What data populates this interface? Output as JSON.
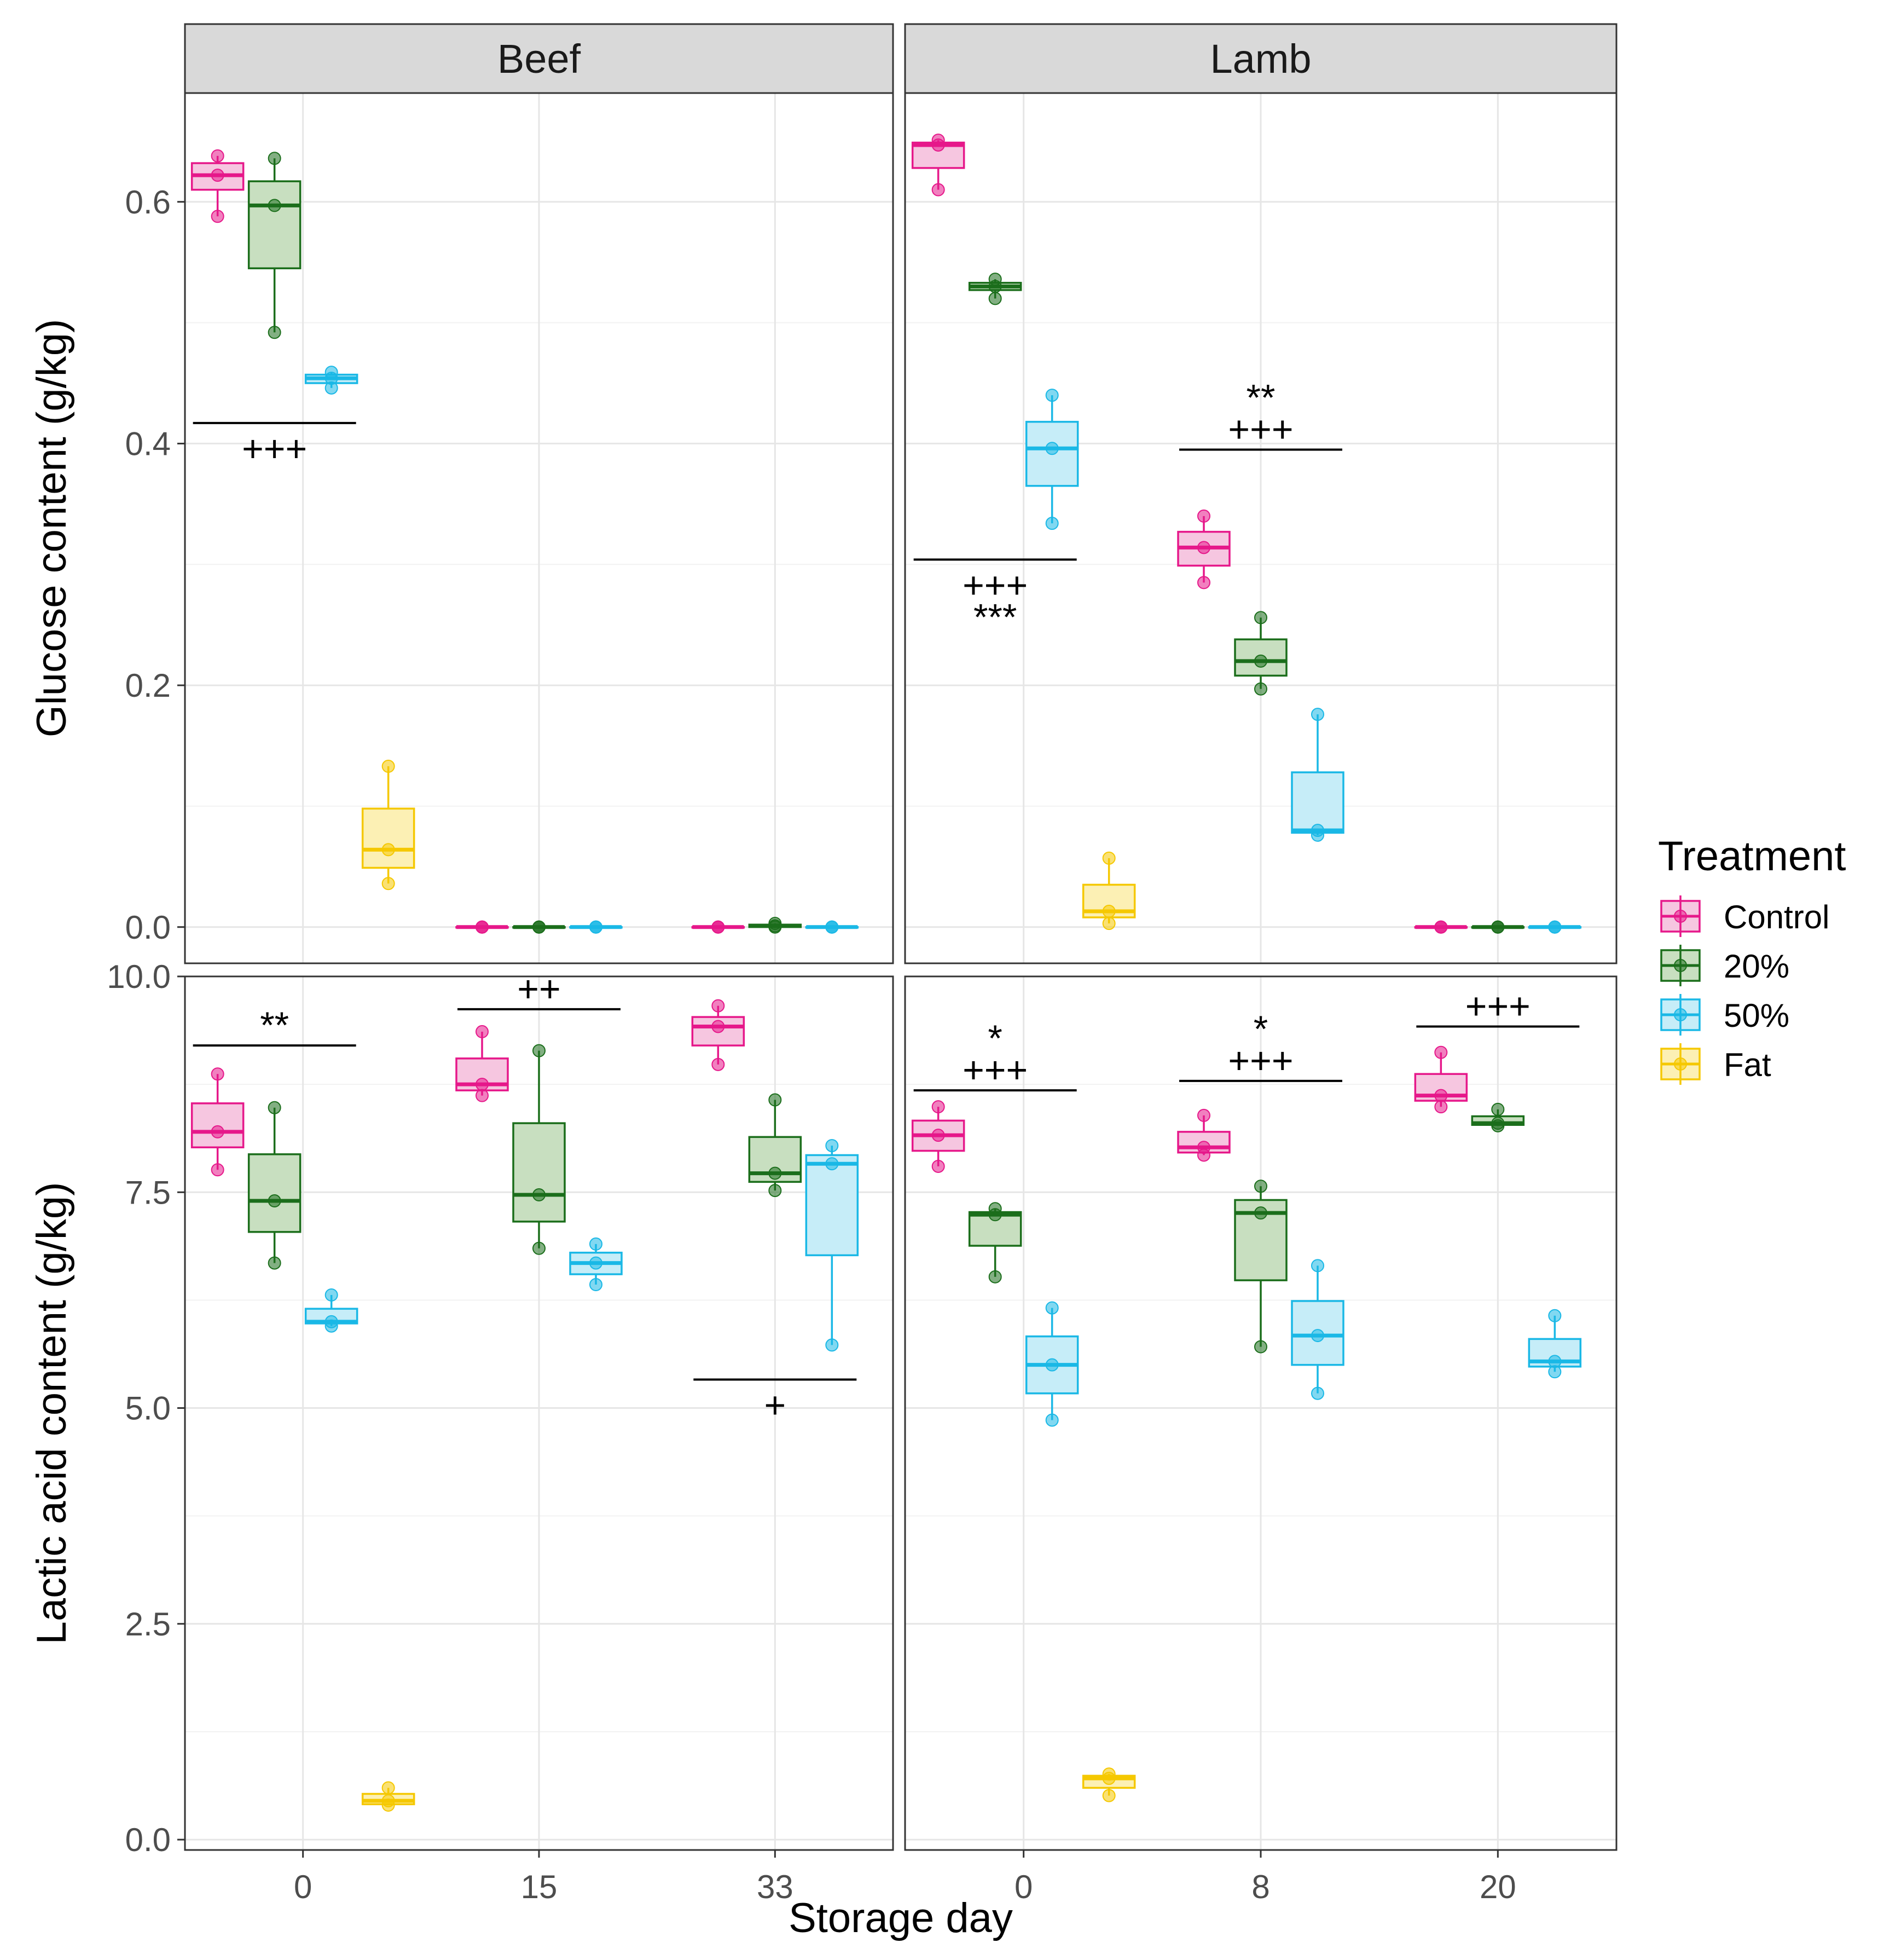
{
  "chart_data": {
    "type": "boxplot",
    "facets": [
      "Beef",
      "Lamb"
    ],
    "legend": {
      "title": "Treatment",
      "entries": [
        {
          "name": "Control",
          "color": "#e6188a",
          "fill": "#f6c6e0"
        },
        {
          "name": "20%",
          "color": "#1b6e1b",
          "fill": "#c8dfc0"
        },
        {
          "name": "50%",
          "color": "#1ab8e6",
          "fill": "#c6edf8"
        },
        {
          "name": "Fat",
          "color": "#f5c800",
          "fill": "#fcf0b4"
        }
      ]
    },
    "xlabel": "Storage day",
    "x_ticks": {
      "Beef": [
        "0",
        "15",
        "33"
      ],
      "Lamb": [
        "0",
        "8",
        "20"
      ]
    },
    "rows": [
      {
        "ylabel": "Glucose content (g/kg)",
        "ylim": [
          -0.03,
          0.69
        ],
        "y_ticks": [
          0.0,
          0.2,
          0.4,
          0.6
        ],
        "y_tick_labels": [
          "0.0",
          "0.2",
          "0.4",
          "0.6"
        ],
        "panels": [
          {
            "facet": "Beef",
            "boxes": [
              {
                "group": 0,
                "treatment": "Control",
                "q1": 0.61,
                "median": 0.622,
                "q3": 0.632,
                "min": 0.588,
                "max": 0.638,
                "points": [
                  0.638,
                  0.622,
                  0.588
                ]
              },
              {
                "group": 0,
                "treatment": "20%",
                "q1": 0.545,
                "median": 0.597,
                "q3": 0.617,
                "min": 0.492,
                "max": 0.636,
                "points": [
                  0.636,
                  0.597,
                  0.492
                ]
              },
              {
                "group": 0,
                "treatment": "50%",
                "q1": 0.45,
                "median": 0.454,
                "q3": 0.457,
                "min": 0.446,
                "max": 0.459,
                "points": [
                  0.459,
                  0.454,
                  0.446
                ]
              },
              {
                "group": 0,
                "treatment": "Fat",
                "q1": 0.049,
                "median": 0.064,
                "q3": 0.098,
                "min": 0.036,
                "max": 0.133,
                "points": [
                  0.133,
                  0.064,
                  0.036
                ]
              },
              {
                "group": 1,
                "treatment": "Control",
                "q1": 0,
                "median": 0,
                "q3": 0,
                "min": 0,
                "max": 0,
                "points": [
                  0,
                  0,
                  0
                ]
              },
              {
                "group": 1,
                "treatment": "20%",
                "q1": 0,
                "median": 0,
                "q3": 0,
                "min": 0,
                "max": 0,
                "points": [
                  0,
                  0,
                  0
                ]
              },
              {
                "group": 1,
                "treatment": "50%",
                "q1": 0,
                "median": 0,
                "q3": 0,
                "min": 0,
                "max": 0,
                "points": [
                  0,
                  0,
                  0
                ]
              },
              {
                "group": 2,
                "treatment": "Control",
                "q1": 0,
                "median": 0,
                "q3": 0,
                "min": 0,
                "max": 0,
                "points": [
                  0,
                  0,
                  0
                ]
              },
              {
                "group": 2,
                "treatment": "20%",
                "q1": 0,
                "median": 0.001,
                "q3": 0.002,
                "min": 0,
                "max": 0.003,
                "points": [
                  0.003,
                  0.001,
                  0
                ]
              },
              {
                "group": 2,
                "treatment": "50%",
                "q1": 0,
                "median": 0,
                "q3": 0,
                "min": 0,
                "max": 0,
                "points": [
                  0,
                  0,
                  0
                ]
              }
            ],
            "annotations": [
              {
                "group": 0,
                "from": "Control",
                "to": "50%",
                "y": 0.417,
                "label": "+++",
                "position": "below"
              }
            ]
          },
          {
            "facet": "Lamb",
            "boxes": [
              {
                "group": 0,
                "treatment": "Control",
                "q1": 0.628,
                "median": 0.647,
                "q3": 0.649,
                "min": 0.61,
                "max": 0.651,
                "points": [
                  0.651,
                  0.647,
                  0.61
                ]
              },
              {
                "group": 0,
                "treatment": "20%",
                "q1": 0.527,
                "median": 0.53,
                "q3": 0.533,
                "min": 0.52,
                "max": 0.536,
                "points": [
                  0.536,
                  0.53,
                  0.52
                ]
              },
              {
                "group": 0,
                "treatment": "50%",
                "q1": 0.365,
                "median": 0.396,
                "q3": 0.418,
                "min": 0.334,
                "max": 0.44,
                "points": [
                  0.44,
                  0.396,
                  0.334
                ]
              },
              {
                "group": 0,
                "treatment": "Fat",
                "q1": 0.008,
                "median": 0.013,
                "q3": 0.035,
                "min": 0.003,
                "max": 0.057,
                "points": [
                  0.057,
                  0.013,
                  0.003
                ]
              },
              {
                "group": 1,
                "treatment": "Control",
                "q1": 0.299,
                "median": 0.314,
                "q3": 0.327,
                "min": 0.285,
                "max": 0.34,
                "points": [
                  0.34,
                  0.314,
                  0.285
                ]
              },
              {
                "group": 1,
                "treatment": "20%",
                "q1": 0.208,
                "median": 0.22,
                "q3": 0.238,
                "min": 0.197,
                "max": 0.256,
                "points": [
                  0.256,
                  0.22,
                  0.197
                ]
              },
              {
                "group": 1,
                "treatment": "50%",
                "q1": 0.078,
                "median": 0.08,
                "q3": 0.128,
                "min": 0.076,
                "max": 0.176,
                "points": [
                  0.176,
                  0.08,
                  0.076
                ]
              },
              {
                "group": 2,
                "treatment": "Control",
                "q1": 0,
                "median": 0,
                "q3": 0,
                "min": 0,
                "max": 0,
                "points": [
                  0,
                  0,
                  0
                ]
              },
              {
                "group": 2,
                "treatment": "20%",
                "q1": 0,
                "median": 0,
                "q3": 0,
                "min": 0,
                "max": 0,
                "points": [
                  0,
                  0,
                  0
                ]
              },
              {
                "group": 2,
                "treatment": "50%",
                "q1": 0,
                "median": 0,
                "q3": 0,
                "min": 0,
                "max": 0,
                "points": [
                  0,
                  0,
                  0
                ]
              }
            ],
            "annotations": [
              {
                "group": 0,
                "from": "Control",
                "to": "50%",
                "y": 0.304,
                "label": "+++",
                "label2": "***",
                "position": "below"
              },
              {
                "group": 1,
                "from": "Control",
                "to": "50%",
                "y": 0.395,
                "label": "+++",
                "label2": "**",
                "position": "above"
              }
            ]
          }
        ]
      },
      {
        "ylabel": "Lactic acid content (g/kg)",
        "ylim": [
          -0.12,
          10.0
        ],
        "y_ticks": [
          0.0,
          2.5,
          5.0,
          7.5,
          10.0
        ],
        "y_tick_labels": [
          "0.0",
          "2.5",
          "5.0",
          "7.5",
          "10.0"
        ],
        "panels": [
          {
            "facet": "Beef",
            "boxes": [
              {
                "group": 0,
                "treatment": "Control",
                "q1": 8.02,
                "median": 8.2,
                "q3": 8.53,
                "min": 7.76,
                "max": 8.87,
                "points": [
                  8.87,
                  8.2,
                  7.76
                ]
              },
              {
                "group": 0,
                "treatment": "20%",
                "q1": 7.04,
                "median": 7.4,
                "q3": 7.94,
                "min": 6.68,
                "max": 8.48,
                "points": [
                  8.48,
                  7.4,
                  6.68
                ]
              },
              {
                "group": 0,
                "treatment": "50%",
                "q1": 5.98,
                "median": 6.0,
                "q3": 6.15,
                "min": 5.95,
                "max": 6.31,
                "points": [
                  6.31,
                  6.0,
                  5.95
                ]
              },
              {
                "group": 0,
                "treatment": "Fat",
                "q1": 0.41,
                "median": 0.45,
                "q3": 0.53,
                "min": 0.4,
                "max": 0.6,
                "points": [
                  0.6,
                  0.45,
                  0.4
                ]
              },
              {
                "group": 1,
                "treatment": "Control",
                "q1": 8.68,
                "median": 8.75,
                "q3": 9.05,
                "min": 8.62,
                "max": 9.36,
                "points": [
                  9.36,
                  8.75,
                  8.62
                ]
              },
              {
                "group": 1,
                "treatment": "20%",
                "q1": 7.16,
                "median": 7.47,
                "q3": 8.3,
                "min": 6.85,
                "max": 9.14,
                "points": [
                  9.14,
                  7.47,
                  6.85
                ]
              },
              {
                "group": 1,
                "treatment": "50%",
                "q1": 6.55,
                "median": 6.68,
                "q3": 6.8,
                "min": 6.43,
                "max": 6.9,
                "points": [
                  6.9,
                  6.68,
                  6.43
                ]
              },
              {
                "group": 2,
                "treatment": "Control",
                "q1": 9.2,
                "median": 9.42,
                "q3": 9.53,
                "min": 8.98,
                "max": 9.66,
                "points": [
                  9.66,
                  9.42,
                  8.98
                ]
              },
              {
                "group": 2,
                "treatment": "20%",
                "q1": 7.62,
                "median": 7.72,
                "q3": 8.14,
                "min": 7.52,
                "max": 8.57,
                "points": [
                  8.57,
                  7.72,
                  7.52
                ]
              },
              {
                "group": 2,
                "treatment": "50%",
                "q1": 6.77,
                "median": 7.83,
                "q3": 7.93,
                "min": 5.73,
                "max": 8.04,
                "points": [
                  8.04,
                  7.83,
                  5.73
                ]
              }
            ],
            "annotations": [
              {
                "group": 0,
                "from": "Control",
                "to": "50%",
                "y": 9.2,
                "label": "**",
                "position": "above"
              },
              {
                "group": 1,
                "from": "Control",
                "to": "50%",
                "y": 9.62,
                "label": "++",
                "position": "above"
              },
              {
                "group": 2,
                "from": "Control",
                "to": "50%",
                "y": 5.33,
                "label": "+",
                "position": "below"
              }
            ]
          },
          {
            "facet": "Lamb",
            "boxes": [
              {
                "group": 0,
                "treatment": "Control",
                "q1": 7.98,
                "median": 8.16,
                "q3": 8.33,
                "min": 7.8,
                "max": 8.49,
                "points": [
                  8.49,
                  8.16,
                  7.8
                ]
              },
              {
                "group": 0,
                "treatment": "20%",
                "q1": 6.88,
                "median": 7.24,
                "q3": 7.27,
                "min": 6.52,
                "max": 7.31,
                "points": [
                  7.31,
                  7.24,
                  6.52
                ]
              },
              {
                "group": 0,
                "treatment": "50%",
                "q1": 5.17,
                "median": 5.5,
                "q3": 5.83,
                "min": 4.86,
                "max": 6.16,
                "points": [
                  6.16,
                  5.5,
                  4.86
                ]
              },
              {
                "group": 0,
                "treatment": "Fat",
                "q1": 0.6,
                "median": 0.71,
                "q3": 0.74,
                "min": 0.51,
                "max": 0.76,
                "points": [
                  0.76,
                  0.71,
                  0.51
                ]
              },
              {
                "group": 1,
                "treatment": "Control",
                "q1": 7.96,
                "median": 8.02,
                "q3": 8.2,
                "min": 7.93,
                "max": 8.39,
                "points": [
                  8.39,
                  8.02,
                  7.93
                ]
              },
              {
                "group": 1,
                "treatment": "20%",
                "q1": 6.48,
                "median": 7.26,
                "q3": 7.41,
                "min": 5.71,
                "max": 7.57,
                "points": [
                  7.57,
                  7.26,
                  5.71
                ]
              },
              {
                "group": 1,
                "treatment": "50%",
                "q1": 5.5,
                "median": 5.84,
                "q3": 6.24,
                "min": 5.17,
                "max": 6.65,
                "points": [
                  6.65,
                  5.84,
                  5.17
                ]
              },
              {
                "group": 2,
                "treatment": "Control",
                "q1": 8.56,
                "median": 8.62,
                "q3": 8.87,
                "min": 8.49,
                "max": 9.12,
                "points": [
                  9.12,
                  8.62,
                  8.49
                ]
              },
              {
                "group": 2,
                "treatment": "20%",
                "q1": 8.28,
                "median": 8.3,
                "q3": 8.38,
                "min": 8.27,
                "max": 8.46,
                "points": [
                  8.46,
                  8.3,
                  8.27
                ]
              },
              {
                "group": 2,
                "treatment": "50%",
                "q1": 5.48,
                "median": 5.54,
                "q3": 5.8,
                "min": 5.42,
                "max": 6.07,
                "points": [
                  6.07,
                  5.54,
                  5.42
                ]
              }
            ],
            "annotations": [
              {
                "group": 0,
                "from": "Control",
                "to": "50%",
                "y": 8.68,
                "label": "+++",
                "label2": "*",
                "position": "above"
              },
              {
                "group": 1,
                "from": "Control",
                "to": "50%",
                "y": 8.79,
                "label": "+++",
                "label2": "*",
                "position": "above"
              },
              {
                "group": 2,
                "from": "Control",
                "to": "50%",
                "y": 9.42,
                "label": "+++",
                "position": "above"
              }
            ]
          }
        ]
      }
    ]
  }
}
